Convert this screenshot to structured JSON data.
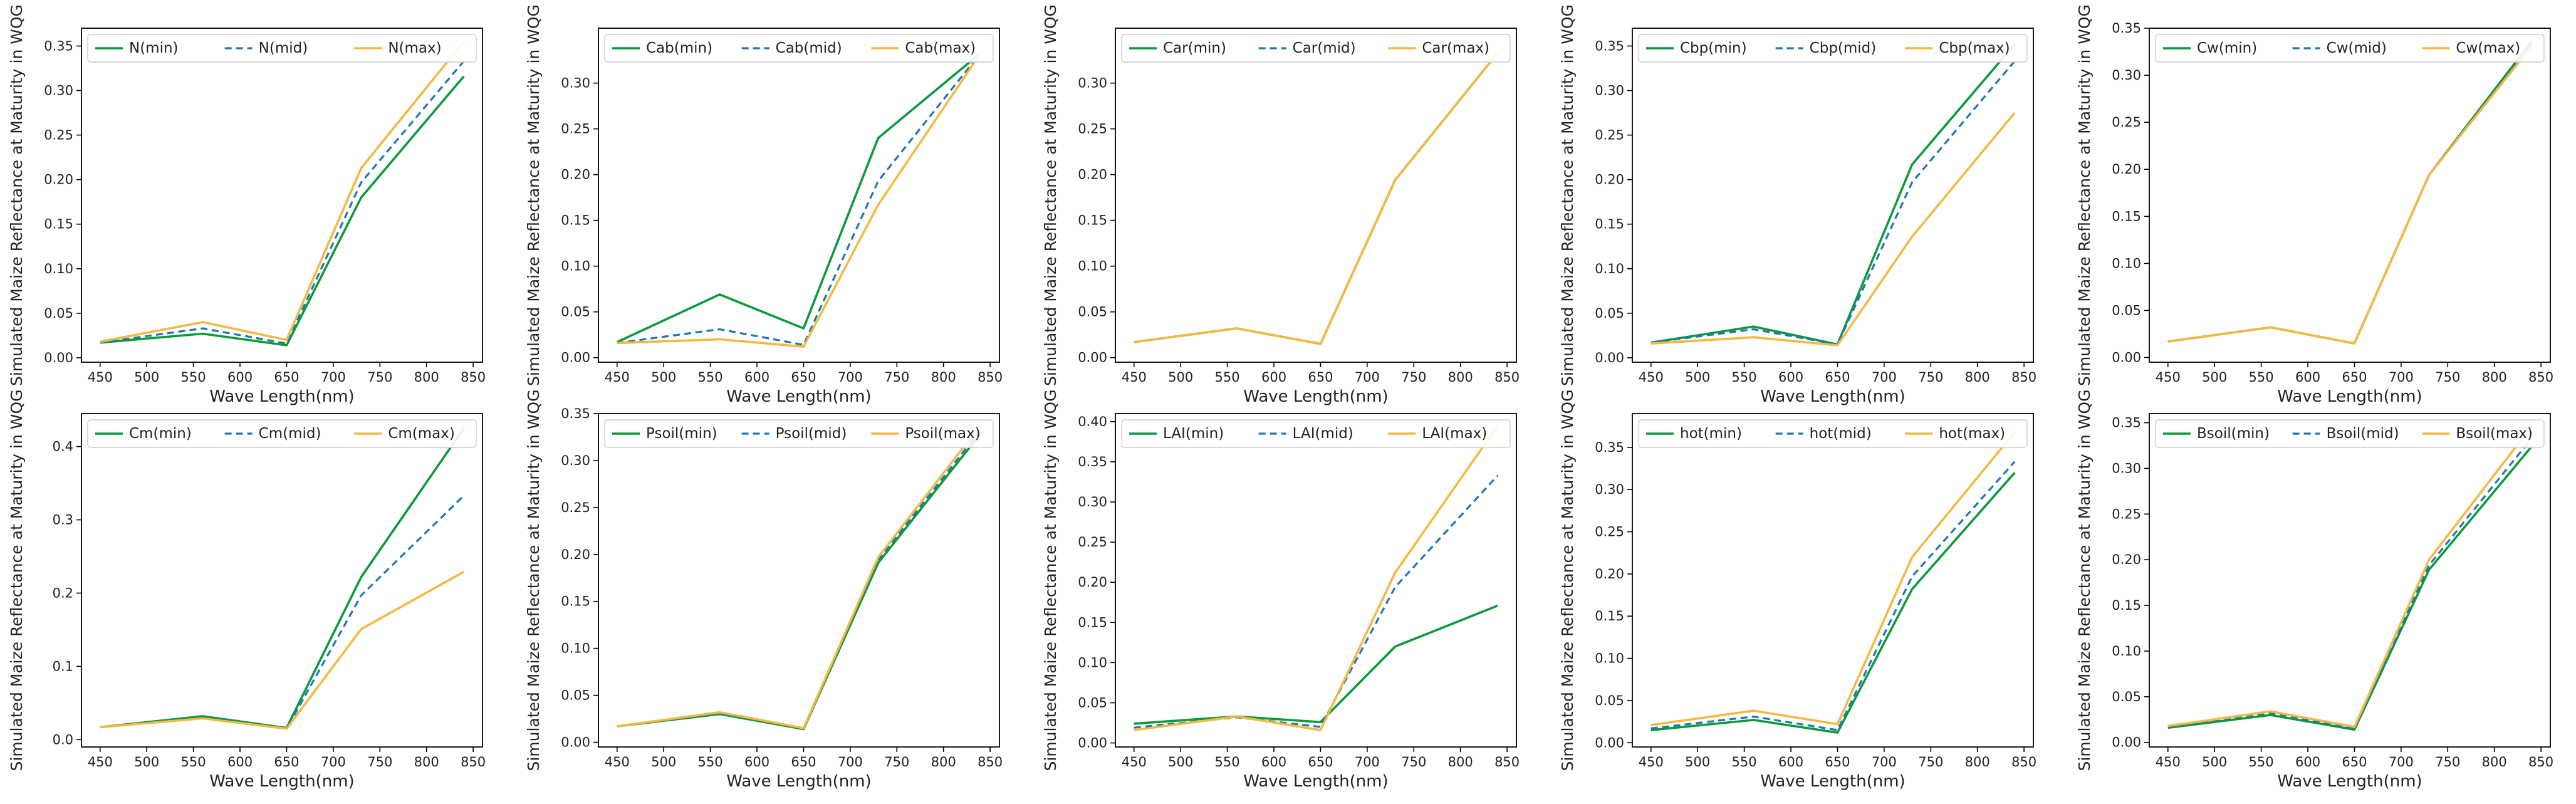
{
  "colors": {
    "min": "#0a9a3a",
    "mid": "#1f77b4",
    "max": "#f5b841"
  },
  "chart_data": [
    {
      "type": "line",
      "ylabel": "Simulated Maize Reflectance at Maturity in WQG",
      "xlabel": "Wave Length(nm)",
      "x": [
        450,
        560,
        650,
        730,
        840
      ],
      "xlim": [
        430,
        860
      ],
      "ylim": [
        -0.005,
        0.37
      ],
      "xticks": [
        450,
        500,
        550,
        600,
        650,
        700,
        750,
        800,
        850
      ],
      "yticks": [
        0.0,
        0.05,
        0.1,
        0.15,
        0.2,
        0.25,
        0.3,
        0.35
      ],
      "ytick_labels": [
        "0.00",
        "0.05",
        "0.10",
        "0.15",
        "0.20",
        "0.25",
        "0.30",
        "0.35"
      ],
      "legend_position": "top",
      "series": [
        {
          "name": "N(min)",
          "style": "min",
          "values": [
            0.017,
            0.027,
            0.014,
            0.18,
            0.316
          ]
        },
        {
          "name": "N(mid)",
          "style": "mid",
          "values": [
            0.017,
            0.033,
            0.016,
            0.197,
            0.333
          ]
        },
        {
          "name": "N(max)",
          "style": "max",
          "values": [
            0.018,
            0.04,
            0.02,
            0.213,
            0.355
          ]
        }
      ]
    },
    {
      "type": "line",
      "ylabel": "Simulated Maize Reflectance at Maturity in WQG",
      "xlabel": "Wave Length(nm)",
      "x": [
        450,
        560,
        650,
        730,
        840
      ],
      "xlim": [
        430,
        860
      ],
      "ylim": [
        -0.005,
        0.36
      ],
      "xticks": [
        450,
        500,
        550,
        600,
        650,
        700,
        750,
        800,
        850
      ],
      "yticks": [
        0.0,
        0.05,
        0.1,
        0.15,
        0.2,
        0.25,
        0.3
      ],
      "ytick_labels": [
        "0.00",
        "0.05",
        "0.10",
        "0.15",
        "0.20",
        "0.25",
        "0.30"
      ],
      "legend_position": "top",
      "series": [
        {
          "name": "Cab(min)",
          "style": "min",
          "values": [
            0.017,
            0.069,
            0.032,
            0.24,
            0.333
          ]
        },
        {
          "name": "Cab(mid)",
          "style": "mid",
          "values": [
            0.016,
            0.031,
            0.014,
            0.193,
            0.333
          ]
        },
        {
          "name": "Cab(max)",
          "style": "max",
          "values": [
            0.016,
            0.02,
            0.012,
            0.167,
            0.333
          ]
        }
      ]
    },
    {
      "type": "line",
      "ylabel": "Simulated Maize Reflectance at Maturity in WQG",
      "xlabel": "Wave Length(nm)",
      "x": [
        450,
        560,
        650,
        730,
        840
      ],
      "xlim": [
        430,
        860
      ],
      "ylim": [
        -0.005,
        0.36
      ],
      "xticks": [
        450,
        500,
        550,
        600,
        650,
        700,
        750,
        800,
        850
      ],
      "yticks": [
        0.0,
        0.05,
        0.1,
        0.15,
        0.2,
        0.25,
        0.3
      ],
      "ytick_labels": [
        "0.00",
        "0.05",
        "0.10",
        "0.15",
        "0.20",
        "0.25",
        "0.30"
      ],
      "legend_position": "top",
      "series": [
        {
          "name": "Car(min)",
          "style": "min",
          "values": [
            0.017,
            0.032,
            0.015,
            0.194,
            0.333
          ]
        },
        {
          "name": "Car(mid)",
          "style": "mid",
          "values": [
            0.017,
            0.032,
            0.015,
            0.194,
            0.333
          ]
        },
        {
          "name": "Car(max)",
          "style": "max",
          "values": [
            0.017,
            0.032,
            0.015,
            0.194,
            0.333
          ]
        }
      ]
    },
    {
      "type": "line",
      "ylabel": "Simulated Maize Reflectance at Maturity in WQG",
      "xlabel": "Wave Length(nm)",
      "x": [
        450,
        560,
        650,
        730,
        840
      ],
      "xlim": [
        430,
        860
      ],
      "ylim": [
        -0.005,
        0.37
      ],
      "xticks": [
        450,
        500,
        550,
        600,
        650,
        700,
        750,
        800,
        850
      ],
      "yticks": [
        0.0,
        0.05,
        0.1,
        0.15,
        0.2,
        0.25,
        0.3,
        0.35
      ],
      "ytick_labels": [
        "0.00",
        "0.05",
        "0.10",
        "0.15",
        "0.20",
        "0.25",
        "0.30",
        "0.35"
      ],
      "legend_position": "top",
      "series": [
        {
          "name": "Cbp(min)",
          "style": "min",
          "values": [
            0.017,
            0.035,
            0.015,
            0.217,
            0.352
          ]
        },
        {
          "name": "Cbp(mid)",
          "style": "mid",
          "values": [
            0.017,
            0.032,
            0.015,
            0.197,
            0.333
          ]
        },
        {
          "name": "Cbp(max)",
          "style": "max",
          "values": [
            0.016,
            0.023,
            0.014,
            0.136,
            0.275
          ]
        }
      ]
    },
    {
      "type": "line",
      "ylabel": "Simulated Maize Reflectance at Maturity in WQG",
      "xlabel": "Wave Length(nm)",
      "x": [
        450,
        560,
        650,
        730,
        840
      ],
      "xlim": [
        430,
        860
      ],
      "ylim": [
        -0.005,
        0.35
      ],
      "xticks": [
        450,
        500,
        550,
        600,
        650,
        700,
        750,
        800,
        850
      ],
      "yticks": [
        0.0,
        0.05,
        0.1,
        0.15,
        0.2,
        0.25,
        0.3,
        0.35
      ],
      "ytick_labels": [
        "0.00",
        "0.05",
        "0.10",
        "0.15",
        "0.20",
        "0.25",
        "0.30",
        "0.35"
      ],
      "legend_position": "top",
      "series": [
        {
          "name": "Cw(min)",
          "style": "min",
          "values": [
            0.017,
            0.032,
            0.015,
            0.194,
            0.336
          ]
        },
        {
          "name": "Cw(mid)",
          "style": "mid",
          "values": [
            0.017,
            0.032,
            0.015,
            0.194,
            0.333
          ]
        },
        {
          "name": "Cw(max)",
          "style": "max",
          "values": [
            0.017,
            0.032,
            0.015,
            0.194,
            0.331
          ]
        }
      ]
    },
    {
      "type": "line",
      "ylabel": "Simulated Maize Reflectance at Maturity in WQG",
      "xlabel": "Wave Length(nm)",
      "x": [
        450,
        560,
        650,
        730,
        840
      ],
      "xlim": [
        430,
        860
      ],
      "ylim": [
        -0.01,
        0.445
      ],
      "xticks": [
        450,
        500,
        550,
        600,
        650,
        700,
        750,
        800,
        850
      ],
      "yticks": [
        0.0,
        0.1,
        0.2,
        0.3,
        0.4
      ],
      "ytick_labels": [
        "0.0",
        "0.1",
        "0.2",
        "0.3",
        "0.4"
      ],
      "legend_position": "top",
      "series": [
        {
          "name": "Cm(min)",
          "style": "min",
          "values": [
            0.017,
            0.032,
            0.016,
            0.222,
            0.425
          ]
        },
        {
          "name": "Cm(mid)",
          "style": "mid",
          "values": [
            0.017,
            0.03,
            0.015,
            0.197,
            0.333
          ]
        },
        {
          "name": "Cm(max)",
          "style": "max",
          "values": [
            0.017,
            0.029,
            0.015,
            0.151,
            0.229
          ]
        }
      ]
    },
    {
      "type": "line",
      "ylabel": "Simulated Maize Reflectance at Maturity in WQG",
      "xlabel": "Wave Length(nm)",
      "x": [
        450,
        560,
        650,
        730,
        840
      ],
      "xlim": [
        430,
        860
      ],
      "ylim": [
        -0.005,
        0.35
      ],
      "xticks": [
        450,
        500,
        550,
        600,
        650,
        700,
        750,
        800,
        850
      ],
      "yticks": [
        0.0,
        0.05,
        0.1,
        0.15,
        0.2,
        0.25,
        0.3,
        0.35
      ],
      "ytick_labels": [
        "0.00",
        "0.05",
        "0.10",
        "0.15",
        "0.20",
        "0.25",
        "0.30",
        "0.35"
      ],
      "legend_position": "top",
      "series": [
        {
          "name": "Psoil(min)",
          "style": "min",
          "values": [
            0.017,
            0.03,
            0.014,
            0.191,
            0.329
          ]
        },
        {
          "name": "Psoil(mid)",
          "style": "mid",
          "values": [
            0.017,
            0.031,
            0.015,
            0.194,
            0.333
          ]
        },
        {
          "name": "Psoil(max)",
          "style": "max",
          "values": [
            0.017,
            0.032,
            0.015,
            0.197,
            0.338
          ]
        }
      ]
    },
    {
      "type": "line",
      "ylabel": "Simulated Maize Reflectance at Maturity in WQG",
      "xlabel": "Wave Length(nm)",
      "x": [
        450,
        560,
        650,
        730,
        840
      ],
      "xlim": [
        430,
        860
      ],
      "ylim": [
        -0.005,
        0.41
      ],
      "xticks": [
        450,
        500,
        550,
        600,
        650,
        700,
        750,
        800,
        850
      ],
      "yticks": [
        0.0,
        0.05,
        0.1,
        0.15,
        0.2,
        0.25,
        0.3,
        0.35,
        0.4
      ],
      "ytick_labels": [
        "0.00",
        "0.05",
        "0.10",
        "0.15",
        "0.20",
        "0.25",
        "0.30",
        "0.35",
        "0.40"
      ],
      "legend_position": "top",
      "series": [
        {
          "name": "LAI(min)",
          "style": "min",
          "values": [
            0.024,
            0.033,
            0.026,
            0.12,
            0.171
          ]
        },
        {
          "name": "LAI(mid)",
          "style": "mid",
          "values": [
            0.019,
            0.032,
            0.02,
            0.194,
            0.333
          ]
        },
        {
          "name": "LAI(max)",
          "style": "max",
          "values": [
            0.016,
            0.033,
            0.016,
            0.212,
            0.395
          ]
        }
      ]
    },
    {
      "type": "line",
      "ylabel": "Simulated Maize Reflectance at Maturity in WQG",
      "xlabel": "Wave Length(nm)",
      "x": [
        450,
        560,
        650,
        730,
        840
      ],
      "xlim": [
        430,
        860
      ],
      "ylim": [
        -0.005,
        0.39
      ],
      "xticks": [
        450,
        500,
        550,
        600,
        650,
        700,
        750,
        800,
        850
      ],
      "yticks": [
        0.0,
        0.05,
        0.1,
        0.15,
        0.2,
        0.25,
        0.3,
        0.35
      ],
      "ytick_labels": [
        "0.00",
        "0.05",
        "0.10",
        "0.15",
        "0.20",
        "0.25",
        "0.30",
        "0.35"
      ],
      "legend_position": "top",
      "series": [
        {
          "name": "hot(min)",
          "style": "min",
          "values": [
            0.015,
            0.027,
            0.012,
            0.182,
            0.32
          ]
        },
        {
          "name": "hot(mid)",
          "style": "mid",
          "values": [
            0.017,
            0.031,
            0.015,
            0.197,
            0.333
          ]
        },
        {
          "name": "hot(max)",
          "style": "max",
          "values": [
            0.021,
            0.038,
            0.022,
            0.22,
            0.368
          ]
        }
      ]
    },
    {
      "type": "line",
      "ylabel": "Simulated Maize Reflectance at Maturity in WQG",
      "xlabel": "Wave Length(nm)",
      "x": [
        450,
        560,
        650,
        730,
        840
      ],
      "xlim": [
        430,
        860
      ],
      "ylim": [
        -0.005,
        0.36
      ],
      "xticks": [
        450,
        500,
        550,
        600,
        650,
        700,
        750,
        800,
        850
      ],
      "yticks": [
        0.0,
        0.05,
        0.1,
        0.15,
        0.2,
        0.25,
        0.3,
        0.35
      ],
      "ytick_labels": [
        "0.00",
        "0.05",
        "0.10",
        "0.15",
        "0.20",
        "0.25",
        "0.30",
        "0.35"
      ],
      "legend_position": "top",
      "series": [
        {
          "name": "Bsoil(min)",
          "style": "min",
          "values": [
            0.016,
            0.03,
            0.014,
            0.189,
            0.324
          ]
        },
        {
          "name": "Bsoil(mid)",
          "style": "mid",
          "values": [
            0.017,
            0.032,
            0.015,
            0.194,
            0.333
          ]
        },
        {
          "name": "Bsoil(max)",
          "style": "max",
          "values": [
            0.018,
            0.034,
            0.017,
            0.2,
            0.346
          ]
        }
      ]
    }
  ]
}
